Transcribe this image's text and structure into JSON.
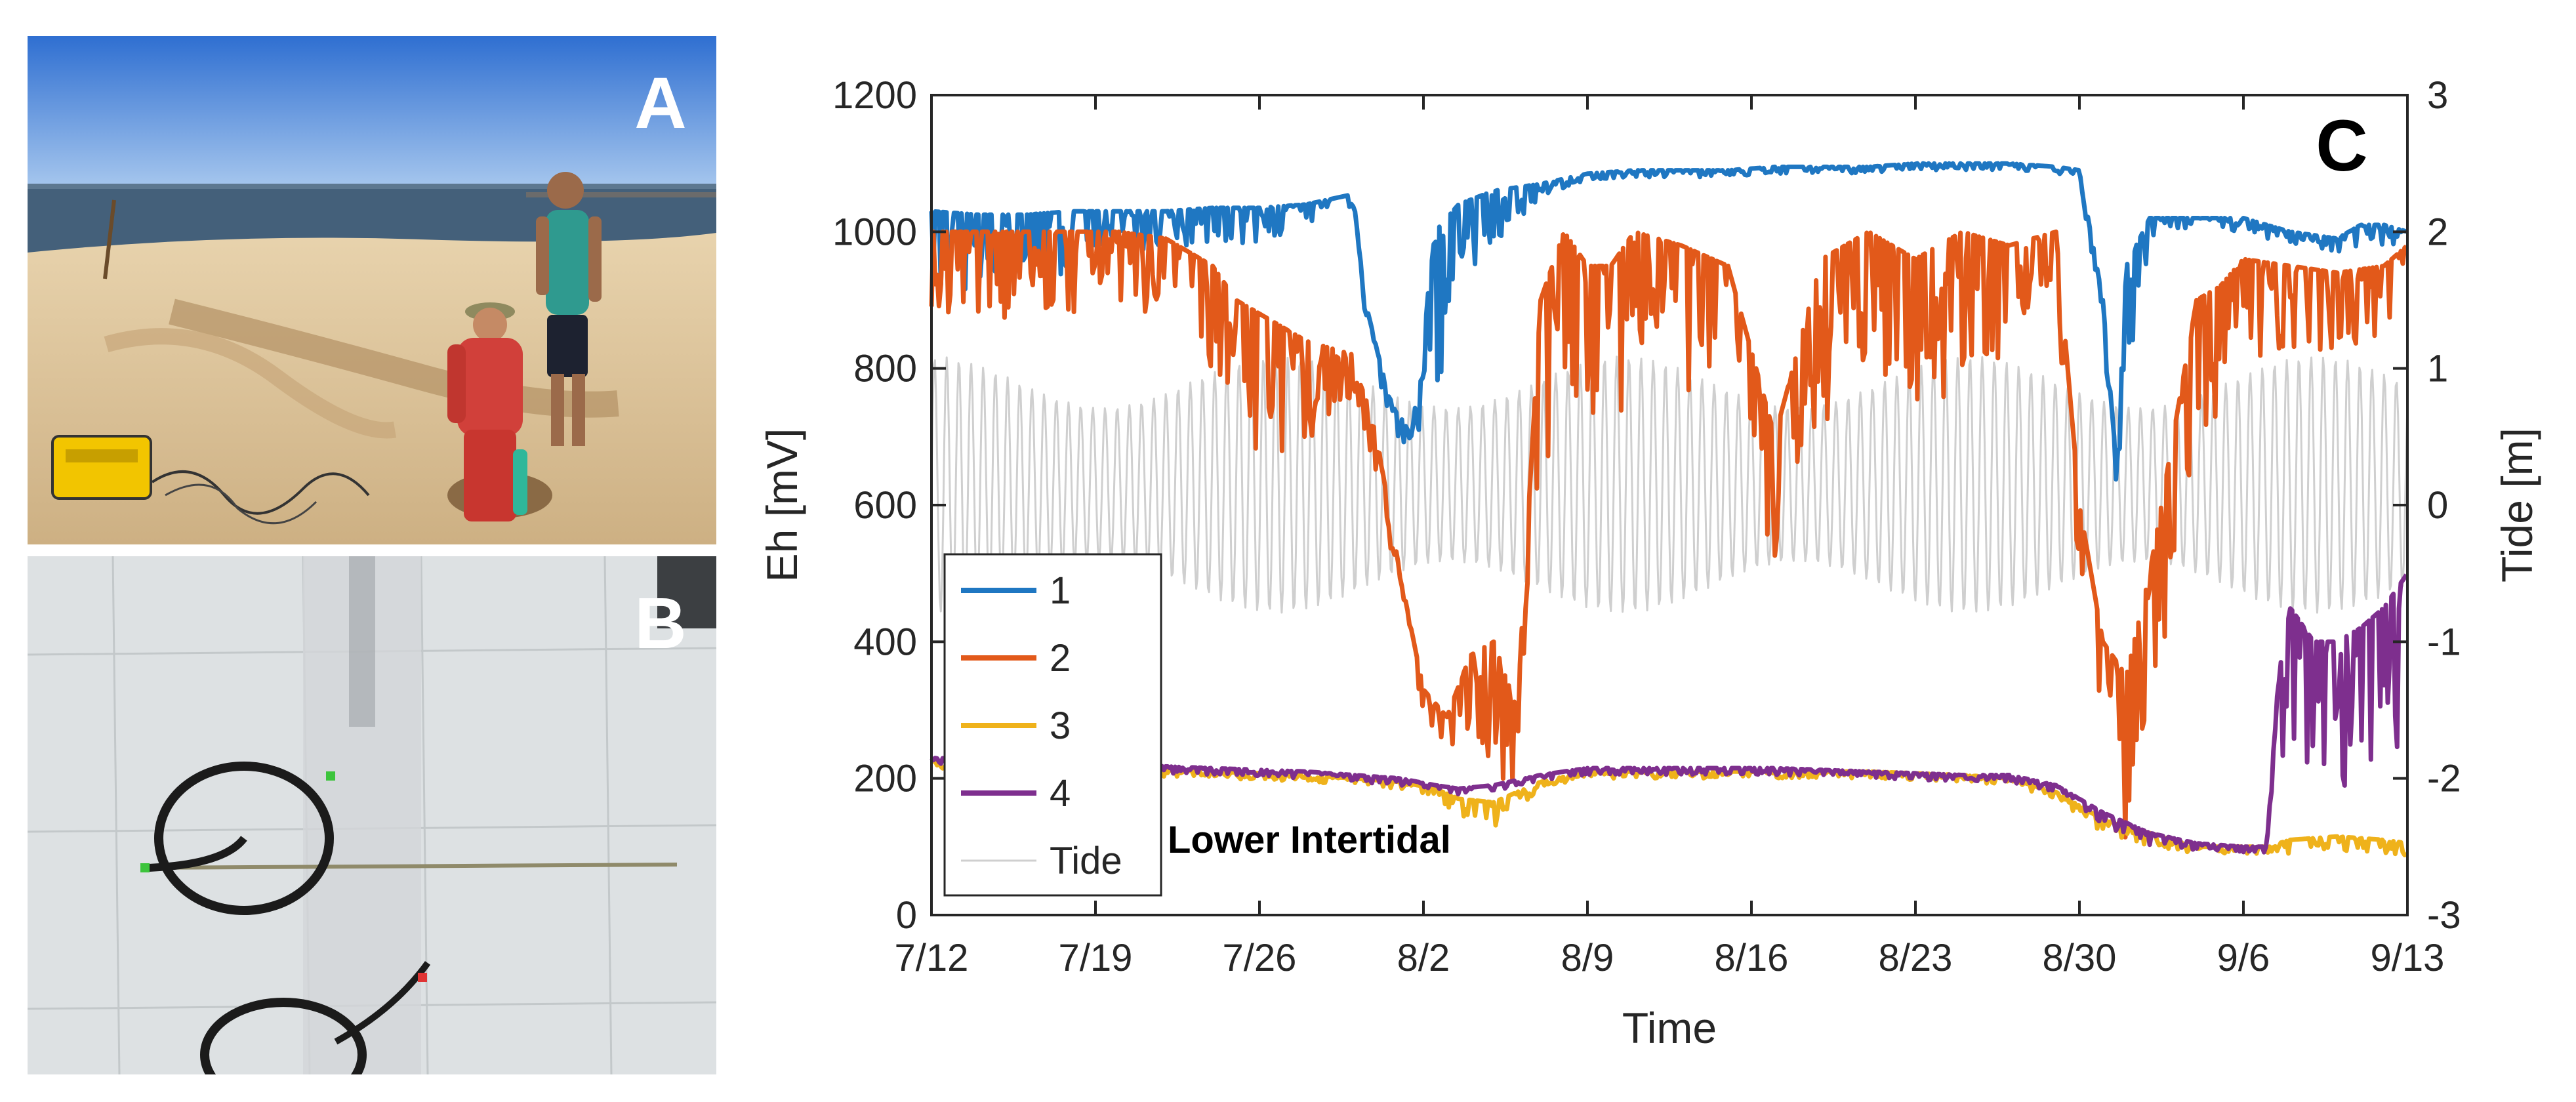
{
  "panels": {
    "a_label": "A",
    "b_label": "B",
    "c_label": "C"
  },
  "colors": {
    "series1": "#1f77c2",
    "series2": "#e2591a",
    "series3": "#efb21b",
    "series4": "#7e2f8e",
    "tide": "#cfcfcf",
    "sky_top": "#3b78d6",
    "sand": "#d9bf96",
    "floor": "#e4e7e8"
  },
  "chart_data": {
    "type": "line",
    "title": "",
    "xlabel": "Time",
    "ylabel": "Eh [mV]",
    "y2label": "Tide [m]",
    "annotation": "Lower Intertidal",
    "xlim": [
      0,
      63
    ],
    "ylim": [
      0,
      1200
    ],
    "y2lim": [
      -3,
      3
    ],
    "x_ticks": [
      0,
      7,
      14,
      21,
      28,
      35,
      42,
      49,
      56,
      63
    ],
    "x_tick_labels": [
      "7/12",
      "7/19",
      "7/26",
      "8/2",
      "8/9",
      "8/16",
      "8/23",
      "8/30",
      "9/6",
      "9/13"
    ],
    "y_ticks": [
      0,
      200,
      400,
      600,
      800,
      1000,
      1200
    ],
    "y_tick_labels": [
      "0",
      "200",
      "400",
      "600",
      "800",
      "1000",
      "1200"
    ],
    "y2_ticks": [
      -3,
      -2,
      -1,
      0,
      1,
      2,
      3
    ],
    "y2_tick_labels": [
      "-3",
      "-2",
      "-1",
      "0",
      "1",
      "2",
      "3"
    ],
    "legend_position": "bottom-left",
    "series": [
      {
        "name": "1",
        "axis": "left",
        "color": "#1f77c2",
        "x": [
          0,
          2,
          4,
          6,
          8,
          10,
          12,
          14,
          16,
          18,
          18.5,
          19.5,
          20.5,
          21.5,
          22.5,
          24,
          26,
          28,
          30,
          32,
          34,
          36,
          38,
          40,
          42,
          44,
          46,
          48,
          49,
          50,
          50.6,
          51,
          52,
          54,
          56,
          58,
          60,
          61,
          62,
          63
        ],
        "values": [
          1030,
          1025,
          1025,
          1030,
          1030,
          1030,
          1035,
          1035,
          1040,
          1055,
          900,
          760,
          700,
          1000,
          1040,
          1060,
          1070,
          1085,
          1090,
          1090,
          1090,
          1095,
          1095,
          1095,
          1100,
          1100,
          1100,
          1095,
          1090,
          900,
          650,
          950,
          1020,
          1020,
          1020,
          1000,
          990,
          1010,
          1010,
          1000
        ],
        "noise": [
          120,
          120,
          120,
          90,
          60,
          60,
          50,
          60,
          40,
          20,
          20,
          40,
          40,
          250,
          150,
          80,
          20,
          10,
          10,
          10,
          10,
          10,
          10,
          10,
          10,
          10,
          10,
          10,
          10,
          40,
          40,
          200,
          40,
          20,
          20,
          20,
          20,
          30,
          30,
          20
        ]
      },
      {
        "name": "2",
        "axis": "left",
        "color": "#e2591a",
        "x": [
          0,
          2,
          4,
          6,
          8,
          10,
          12,
          13,
          14,
          15,
          16,
          17,
          18,
          19,
          20,
          21,
          22,
          23,
          24,
          25,
          26,
          27,
          28,
          29,
          30,
          32,
          34,
          36,
          38,
          40,
          42,
          44,
          46,
          48,
          49,
          50,
          51,
          52,
          53,
          54,
          55,
          56,
          58,
          60,
          62,
          63
        ],
        "values": [
          1000,
          1000,
          1000,
          1000,
          1000,
          990,
          950,
          900,
          880,
          860,
          840,
          830,
          820,
          700,
          500,
          330,
          290,
          380,
          400,
          300,
          900,
          1000,
          950,
          950,
          1000,
          980,
          950,
          700,
          960,
          1000,
          960,
          1000,
          980,
          1000,
          600,
          400,
          350,
          500,
          700,
          900,
          920,
          960,
          950,
          940,
          950,
          980
        ],
        "noise": [
          120,
          140,
          140,
          120,
          100,
          120,
          150,
          200,
          250,
          200,
          150,
          100,
          60,
          60,
          40,
          40,
          50,
          150,
          200,
          120,
          300,
          200,
          250,
          250,
          220,
          220,
          250,
          200,
          250,
          200,
          250,
          250,
          150,
          100,
          150,
          200,
          250,
          200,
          250,
          200,
          200,
          150,
          120,
          120,
          100,
          80
        ]
      },
      {
        "name": "3",
        "axis": "left",
        "color": "#efb21b",
        "x": [
          0,
          4,
          8,
          12,
          16,
          18,
          20,
          21.5,
          22.5,
          24,
          26,
          28,
          32,
          36,
          40,
          44,
          46,
          48,
          50,
          52,
          54,
          56,
          57,
          58,
          60,
          62,
          63
        ],
        "values": [
          225,
          220,
          215,
          210,
          205,
          200,
          195,
          185,
          170,
          165,
          195,
          210,
          210,
          210,
          210,
          205,
          200,
          180,
          140,
          120,
          100,
          100,
          100,
          110,
          115,
          110,
          105
        ],
        "noise": [
          10,
          10,
          10,
          10,
          10,
          10,
          10,
          10,
          30,
          40,
          10,
          10,
          10,
          10,
          10,
          10,
          10,
          10,
          20,
          20,
          10,
          10,
          10,
          20,
          20,
          20,
          20
        ]
      },
      {
        "name": "4",
        "axis": "left",
        "color": "#7e2f8e",
        "x": [
          0,
          4,
          8,
          12,
          16,
          18,
          20,
          21.5,
          22.5,
          24,
          26,
          28,
          32,
          36,
          40,
          44,
          46,
          48,
          50,
          52,
          54,
          56,
          57,
          57.5,
          58,
          59,
          60,
          61,
          62,
          63
        ],
        "values": [
          230,
          225,
          220,
          215,
          210,
          205,
          200,
          190,
          185,
          190,
          205,
          215,
          215,
          215,
          210,
          205,
          205,
          190,
          150,
          120,
          105,
          100,
          100,
          350,
          450,
          400,
          400,
          420,
          450,
          500
        ],
        "noise": [
          10,
          10,
          10,
          10,
          10,
          10,
          10,
          10,
          10,
          10,
          10,
          10,
          10,
          10,
          10,
          10,
          10,
          10,
          20,
          20,
          10,
          10,
          10,
          150,
          200,
          200,
          250,
          250,
          250,
          250
        ]
      },
      {
        "name": "Tide",
        "axis": "right",
        "color": "#cfcfcf",
        "type": "tidal",
        "period_days": 0.52,
        "mean": 0.15,
        "amplitude": 0.75
      }
    ]
  }
}
